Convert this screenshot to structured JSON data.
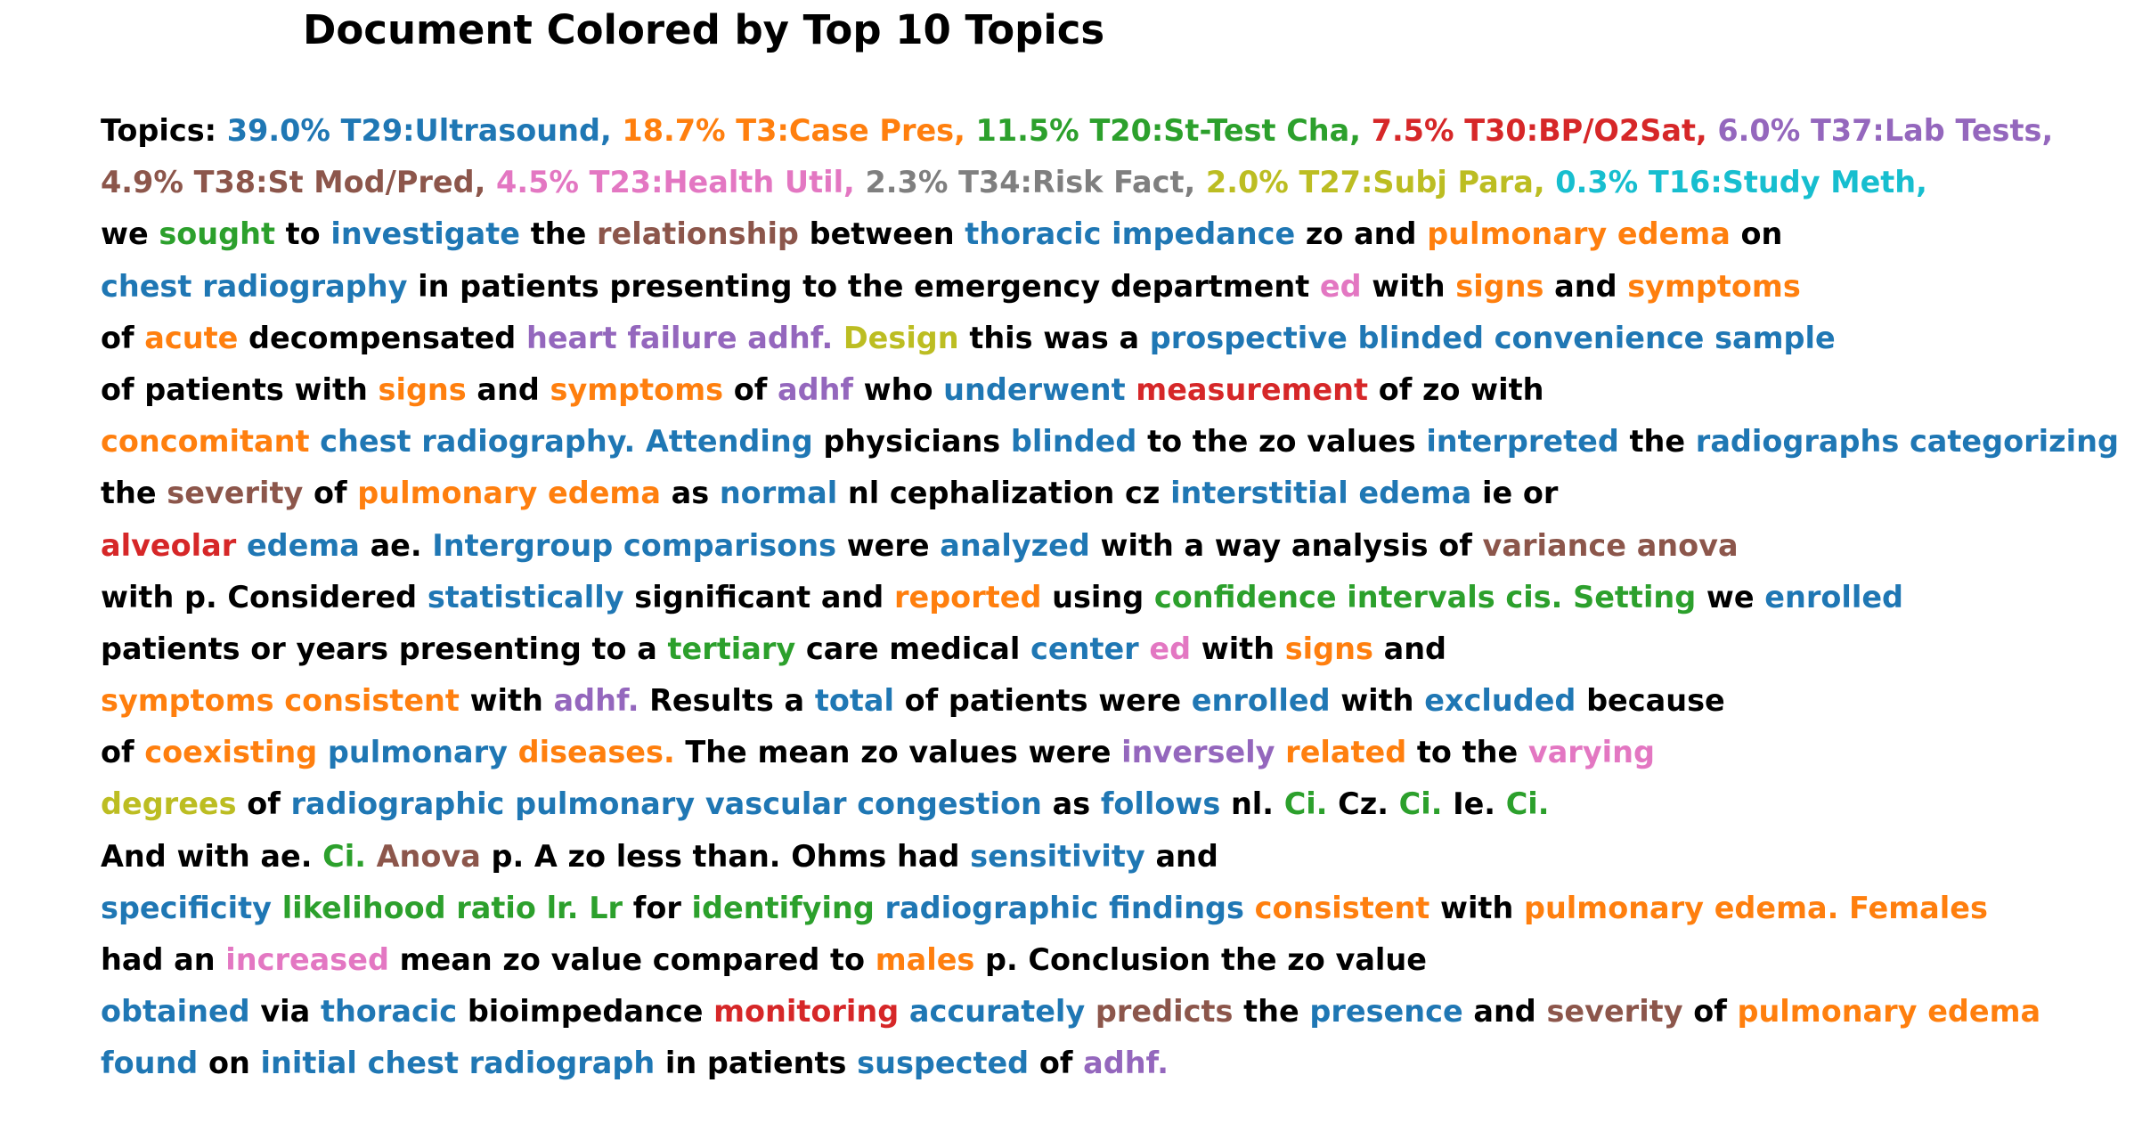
{
  "title": "Document Colored by Top 10 Topics",
  "colors": {
    "T29": "#1f77b4",
    "T3": "#ff7f0e",
    "T20": "#2ca02c",
    "T30": "#d62728",
    "T37": "#9467bd",
    "T38": "#8c564b",
    "T23": "#e377c2",
    "T34": "#7f7f7f",
    "T27": "#bcbd22",
    "T16": "#17becf",
    "none": "#000000"
  },
  "document_lines": [
    [
      [
        "Topics:",
        "none"
      ],
      [
        "39.0%",
        "T29"
      ],
      [
        "T29:Ultrasound,",
        "T29"
      ],
      [
        "18.7%",
        "T3"
      ],
      [
        "T3:Case",
        "T3"
      ],
      [
        "Pres,",
        "T3"
      ],
      [
        "11.5%",
        "T20"
      ],
      [
        "T20:St-Test",
        "T20"
      ],
      [
        "Cha,",
        "T20"
      ],
      [
        "7.5%",
        "T30"
      ],
      [
        "T30:BP/O2Sat,",
        "T30"
      ],
      [
        "6.0%",
        "T37"
      ],
      [
        "T37:Lab",
        "T37"
      ],
      [
        "Tests,",
        "T37"
      ]
    ],
    [
      [
        "4.9%",
        "T38"
      ],
      [
        "T38:St",
        "T38"
      ],
      [
        "Mod/Pred,",
        "T38"
      ],
      [
        "4.5%",
        "T23"
      ],
      [
        "T23:Health",
        "T23"
      ],
      [
        "Util,",
        "T23"
      ],
      [
        "2.3%",
        "T34"
      ],
      [
        "T34:Risk",
        "T34"
      ],
      [
        "Fact,",
        "T34"
      ],
      [
        "2.0%",
        "T27"
      ],
      [
        "T27:Subj",
        "T27"
      ],
      [
        "Para,",
        "T27"
      ],
      [
        "0.3%",
        "T16"
      ],
      [
        "T16:Study",
        "T16"
      ],
      [
        "Meth,",
        "T16"
      ]
    ],
    [
      [
        "we",
        "none"
      ],
      [
        "sought",
        "T20"
      ],
      [
        "to",
        "none"
      ],
      [
        "investigate",
        "T29"
      ],
      [
        "the",
        "none"
      ],
      [
        "relationship",
        "T38"
      ],
      [
        "between",
        "none"
      ],
      [
        "thoracic",
        "T29"
      ],
      [
        "impedance",
        "T29"
      ],
      [
        "zo",
        "none"
      ],
      [
        "and",
        "none"
      ],
      [
        "pulmonary",
        "T3"
      ],
      [
        "edema",
        "T3"
      ],
      [
        "on",
        "none"
      ]
    ],
    [
      [
        "chest",
        "T29"
      ],
      [
        "radiography",
        "T29"
      ],
      [
        "in",
        "none"
      ],
      [
        "patients",
        "none"
      ],
      [
        "presenting",
        "none"
      ],
      [
        "to",
        "none"
      ],
      [
        "the",
        "none"
      ],
      [
        "emergency",
        "none"
      ],
      [
        "department",
        "none"
      ],
      [
        "ed",
        "T23"
      ],
      [
        "with",
        "none"
      ],
      [
        "signs",
        "T3"
      ],
      [
        "and",
        "none"
      ],
      [
        "symptoms",
        "T3"
      ]
    ],
    [
      [
        "of",
        "none"
      ],
      [
        "acute",
        "T3"
      ],
      [
        "decompensated",
        "none"
      ],
      [
        "heart",
        "T37"
      ],
      [
        "failure",
        "T37"
      ],
      [
        "adhf.",
        "T37"
      ],
      [
        "Design",
        "T27"
      ],
      [
        "this",
        "none"
      ],
      [
        "was",
        "none"
      ],
      [
        "a",
        "none"
      ],
      [
        "prospective",
        "T29"
      ],
      [
        "blinded",
        "T29"
      ],
      [
        "convenience",
        "T29"
      ],
      [
        "sample",
        "T29"
      ]
    ],
    [
      [
        "of",
        "none"
      ],
      [
        "patients",
        "none"
      ],
      [
        "with",
        "none"
      ],
      [
        "signs",
        "T3"
      ],
      [
        "and",
        "none"
      ],
      [
        "symptoms",
        "T3"
      ],
      [
        "of",
        "none"
      ],
      [
        "adhf",
        "T37"
      ],
      [
        "who",
        "none"
      ],
      [
        "underwent",
        "T29"
      ],
      [
        "measurement",
        "T30"
      ],
      [
        "of",
        "none"
      ],
      [
        "zo",
        "none"
      ],
      [
        "with",
        "none"
      ]
    ],
    [
      [
        "concomitant",
        "T3"
      ],
      [
        "chest",
        "T29"
      ],
      [
        "radiography.",
        "T29"
      ],
      [
        "Attending",
        "T29"
      ],
      [
        "physicians",
        "none"
      ],
      [
        "blinded",
        "T29"
      ],
      [
        "to",
        "none"
      ],
      [
        "the",
        "none"
      ],
      [
        "zo",
        "none"
      ],
      [
        "values",
        "none"
      ],
      [
        "interpreted",
        "T29"
      ],
      [
        "the",
        "none"
      ],
      [
        "radiographs",
        "T29"
      ],
      [
        "categorizing",
        "T29"
      ]
    ],
    [
      [
        "the",
        "none"
      ],
      [
        "severity",
        "T38"
      ],
      [
        "of",
        "none"
      ],
      [
        "pulmonary",
        "T3"
      ],
      [
        "edema",
        "T3"
      ],
      [
        "as",
        "none"
      ],
      [
        "normal",
        "T29"
      ],
      [
        "nl",
        "none"
      ],
      [
        "cephalization",
        "none"
      ],
      [
        "cz",
        "none"
      ],
      [
        "interstitial",
        "T29"
      ],
      [
        "edema",
        "T29"
      ],
      [
        "ie",
        "none"
      ],
      [
        "or",
        "none"
      ]
    ],
    [
      [
        "alveolar",
        "T30"
      ],
      [
        "edema",
        "T29"
      ],
      [
        "ae.",
        "none"
      ],
      [
        "Intergroup",
        "T29"
      ],
      [
        "comparisons",
        "T29"
      ],
      [
        "were",
        "none"
      ],
      [
        "analyzed",
        "T29"
      ],
      [
        "with",
        "none"
      ],
      [
        "a",
        "none"
      ],
      [
        "way",
        "none"
      ],
      [
        "analysis",
        "none"
      ],
      [
        "of",
        "none"
      ],
      [
        "variance",
        "T38"
      ],
      [
        "anova",
        "T38"
      ]
    ],
    [
      [
        "with",
        "none"
      ],
      [
        "p.",
        "none"
      ],
      [
        "Considered",
        "none"
      ],
      [
        "statistically",
        "T29"
      ],
      [
        "significant",
        "none"
      ],
      [
        "and",
        "none"
      ],
      [
        "reported",
        "T3"
      ],
      [
        "using",
        "none"
      ],
      [
        "confidence",
        "T20"
      ],
      [
        "intervals",
        "T20"
      ],
      [
        "cis.",
        "T20"
      ],
      [
        "Setting",
        "T20"
      ],
      [
        "we",
        "none"
      ],
      [
        "enrolled",
        "T29"
      ]
    ],
    [
      [
        "patients",
        "none"
      ],
      [
        "or",
        "none"
      ],
      [
        "years",
        "none"
      ],
      [
        "presenting",
        "none"
      ],
      [
        "to",
        "none"
      ],
      [
        "a",
        "none"
      ],
      [
        "tertiary",
        "T20"
      ],
      [
        "care",
        "none"
      ],
      [
        "medical",
        "none"
      ],
      [
        "center",
        "T29"
      ],
      [
        "ed",
        "T23"
      ],
      [
        "with",
        "none"
      ],
      [
        "signs",
        "T3"
      ],
      [
        "and",
        "none"
      ]
    ],
    [
      [
        "symptoms",
        "T3"
      ],
      [
        "consistent",
        "T3"
      ],
      [
        "with",
        "none"
      ],
      [
        "adhf.",
        "T37"
      ],
      [
        "Results",
        "none"
      ],
      [
        "a",
        "none"
      ],
      [
        "total",
        "T29"
      ],
      [
        "of",
        "none"
      ],
      [
        "patients",
        "none"
      ],
      [
        "were",
        "none"
      ],
      [
        "enrolled",
        "T29"
      ],
      [
        "with",
        "none"
      ],
      [
        "excluded",
        "T29"
      ],
      [
        "because",
        "none"
      ]
    ],
    [
      [
        "of",
        "none"
      ],
      [
        "coexisting",
        "T3"
      ],
      [
        "pulmonary",
        "T29"
      ],
      [
        "diseases.",
        "T3"
      ],
      [
        "The",
        "none"
      ],
      [
        "mean",
        "none"
      ],
      [
        "zo",
        "none"
      ],
      [
        "values",
        "none"
      ],
      [
        "were",
        "none"
      ],
      [
        "inversely",
        "T37"
      ],
      [
        "related",
        "T3"
      ],
      [
        "to",
        "none"
      ],
      [
        "the",
        "none"
      ],
      [
        "varying",
        "T23"
      ]
    ],
    [
      [
        "degrees",
        "T27"
      ],
      [
        "of",
        "none"
      ],
      [
        "radiographic",
        "T29"
      ],
      [
        "pulmonary",
        "T29"
      ],
      [
        "vascular",
        "T29"
      ],
      [
        "congestion",
        "T29"
      ],
      [
        "as",
        "none"
      ],
      [
        "follows",
        "T29"
      ],
      [
        "nl.",
        "none"
      ],
      [
        "Ci.",
        "T20"
      ],
      [
        "Cz.",
        "none"
      ],
      [
        "Ci.",
        "T20"
      ],
      [
        "Ie.",
        "none"
      ],
      [
        "Ci.",
        "T20"
      ]
    ],
    [
      [
        "And",
        "none"
      ],
      [
        "with",
        "none"
      ],
      [
        "ae.",
        "none"
      ],
      [
        "Ci.",
        "T20"
      ],
      [
        "Anova",
        "T38"
      ],
      [
        "p.",
        "none"
      ],
      [
        "A",
        "none"
      ],
      [
        "zo",
        "none"
      ],
      [
        "less",
        "none"
      ],
      [
        "than.",
        "none"
      ],
      [
        "Ohms",
        "none"
      ],
      [
        "had",
        "none"
      ],
      [
        "sensitivity",
        "T29"
      ],
      [
        "and",
        "none"
      ]
    ],
    [
      [
        "specificity",
        "T29"
      ],
      [
        "likelihood",
        "T20"
      ],
      [
        "ratio",
        "T20"
      ],
      [
        "lr.",
        "T20"
      ],
      [
        "Lr",
        "T20"
      ],
      [
        "for",
        "none"
      ],
      [
        "identifying",
        "T20"
      ],
      [
        "radiographic",
        "T29"
      ],
      [
        "findings",
        "T29"
      ],
      [
        "consistent",
        "T3"
      ],
      [
        "with",
        "none"
      ],
      [
        "pulmonary",
        "T3"
      ],
      [
        "edema.",
        "T3"
      ],
      [
        "Females",
        "T3"
      ]
    ],
    [
      [
        "had",
        "none"
      ],
      [
        "an",
        "none"
      ],
      [
        "increased",
        "T23"
      ],
      [
        "mean",
        "none"
      ],
      [
        "zo",
        "none"
      ],
      [
        "value",
        "none"
      ],
      [
        "compared",
        "none"
      ],
      [
        "to",
        "none"
      ],
      [
        "males",
        "T3"
      ],
      [
        "p.",
        "none"
      ],
      [
        "Conclusion",
        "none"
      ],
      [
        "the",
        "none"
      ],
      [
        "zo",
        "none"
      ],
      [
        "value",
        "none"
      ]
    ],
    [
      [
        "obtained",
        "T29"
      ],
      [
        "via",
        "none"
      ],
      [
        "thoracic",
        "T29"
      ],
      [
        "bioimpedance",
        "none"
      ],
      [
        "monitoring",
        "T30"
      ],
      [
        "accurately",
        "T29"
      ],
      [
        "predicts",
        "T38"
      ],
      [
        "the",
        "none"
      ],
      [
        "presence",
        "T29"
      ],
      [
        "and",
        "none"
      ],
      [
        "severity",
        "T38"
      ],
      [
        "of",
        "none"
      ],
      [
        "pulmonary",
        "T3"
      ],
      [
        "edema",
        "T3"
      ]
    ],
    [
      [
        "found",
        "T29"
      ],
      [
        "on",
        "none"
      ],
      [
        "initial",
        "T29"
      ],
      [
        "chest",
        "T29"
      ],
      [
        "radiograph",
        "T29"
      ],
      [
        "in",
        "none"
      ],
      [
        "patients",
        "none"
      ],
      [
        "suspected",
        "T29"
      ],
      [
        "of",
        "none"
      ],
      [
        "adhf.",
        "T37"
      ]
    ]
  ]
}
